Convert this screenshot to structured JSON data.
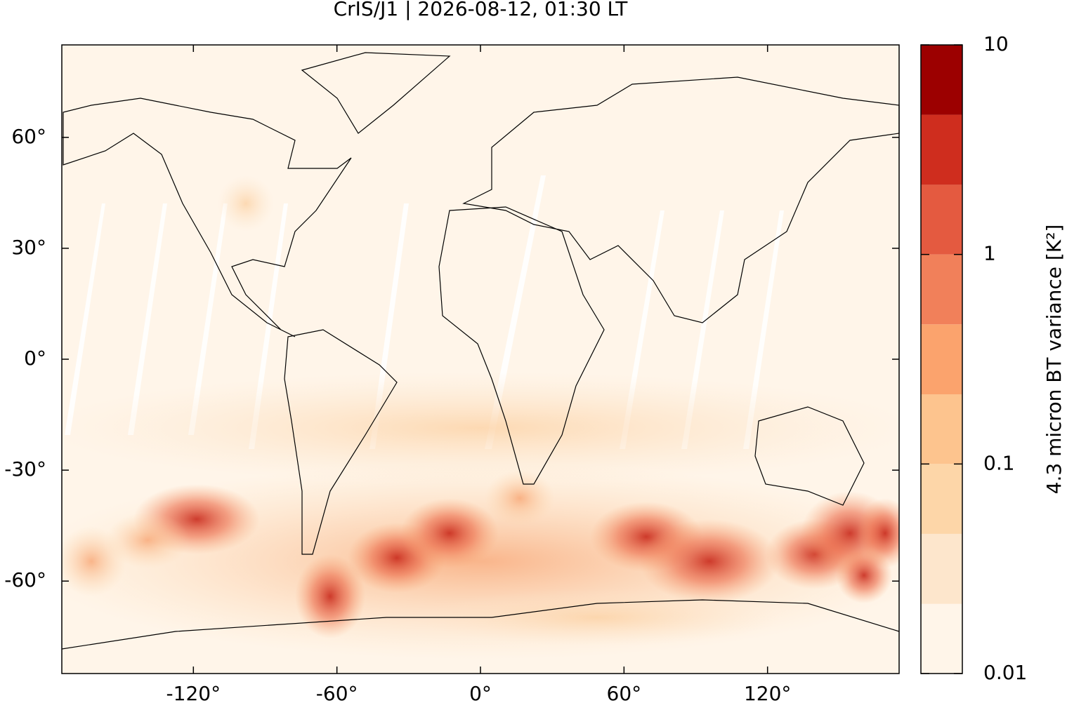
{
  "title": "CrIS/J1 | 2026-08-12, 01:30 LT",
  "map": {
    "xlim": [
      -175,
      175
    ],
    "ylim": [
      -85,
      85
    ],
    "xticks": [
      {
        "value": -120,
        "label": "-120°"
      },
      {
        "value": -60,
        "label": "-60°"
      },
      {
        "value": 0,
        "label": "0°"
      },
      {
        "value": 60,
        "label": "60°"
      },
      {
        "value": 120,
        "label": "120°"
      }
    ],
    "yticks": [
      {
        "value": 60,
        "label": "60°"
      },
      {
        "value": 30,
        "label": "30°"
      },
      {
        "value": 0,
        "label": "0°"
      },
      {
        "value": -30,
        "label": "-30°"
      },
      {
        "value": -60,
        "label": "-60°"
      }
    ]
  },
  "colorbar": {
    "label": "4.3 micron BT variance [K²]",
    "scale": "log",
    "lim": [
      0.01,
      10
    ],
    "ticks": [
      0.01,
      0.1,
      1,
      10
    ],
    "levels": [
      0.01,
      0.0215,
      0.0464,
      0.1,
      0.215,
      0.464,
      1,
      2.15,
      4.64,
      10
    ],
    "colors": [
      "#fff5e9",
      "#fde6cc",
      "#fdd6a8",
      "#fdc48e",
      "#fba36d",
      "#f1805a",
      "#e45a40",
      "#cf2d1e",
      "#9c0000"
    ]
  }
}
